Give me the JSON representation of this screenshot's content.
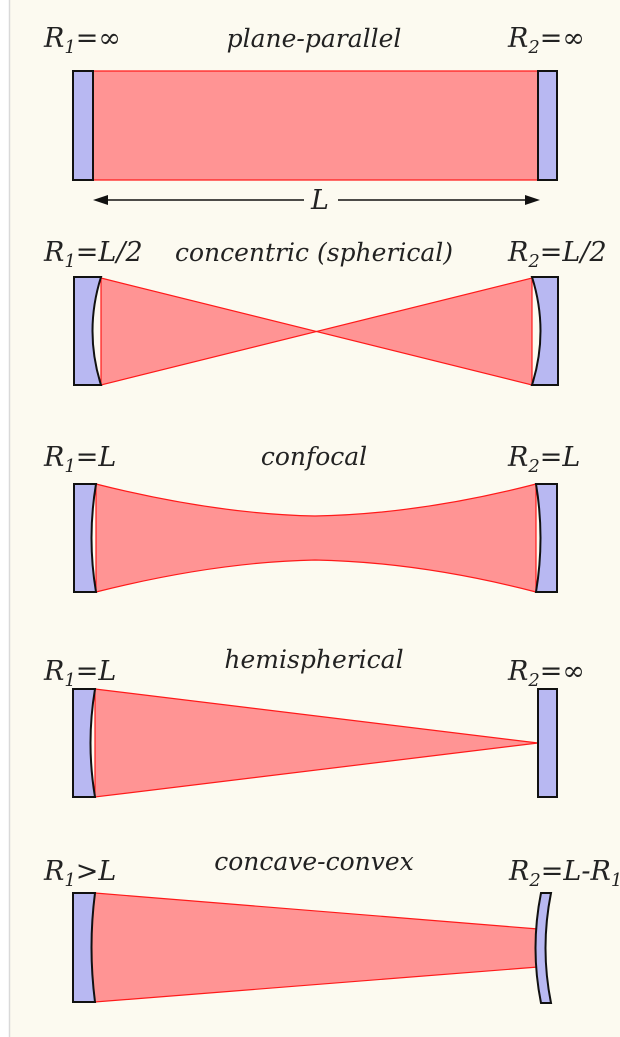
{
  "colors": {
    "background": "#fcfaf0",
    "left_rule": "#d9d9d9",
    "beam_fill": "#ff9494",
    "beam_stroke": "#ff1a1a",
    "mirror_fill": "#b8b8f2",
    "mirror_stroke": "#111111",
    "text": "#222222"
  },
  "length_label": "L",
  "cavities": [
    {
      "title": "plane-parallel",
      "left": {
        "sym": "R",
        "sub": "1",
        "rel": "=∞"
      },
      "right": {
        "sym": "R",
        "sub": "2",
        "rel": "=∞"
      }
    },
    {
      "title": "concentric (spherical)",
      "left": {
        "sym": "R",
        "sub": "1",
        "rel": "=L/2"
      },
      "right": {
        "sym": "R",
        "sub": "2",
        "rel": "=L/2"
      }
    },
    {
      "title": "confocal",
      "left": {
        "sym": "R",
        "sub": "1",
        "rel": "=L"
      },
      "right": {
        "sym": "R",
        "sub": "2",
        "rel": "=L"
      }
    },
    {
      "title": "hemispherical",
      "left": {
        "sym": "R",
        "sub": "1",
        "rel": "=L"
      },
      "right": {
        "sym": "R",
        "sub": "2",
        "rel": "=∞"
      }
    },
    {
      "title": "concave-convex",
      "left": {
        "sym": "R",
        "sub": "1",
        "rel": ">L"
      },
      "right": {
        "sym": "R",
        "sub": "2",
        "rel": "=L-R",
        "rel_sub": "1"
      }
    }
  ]
}
